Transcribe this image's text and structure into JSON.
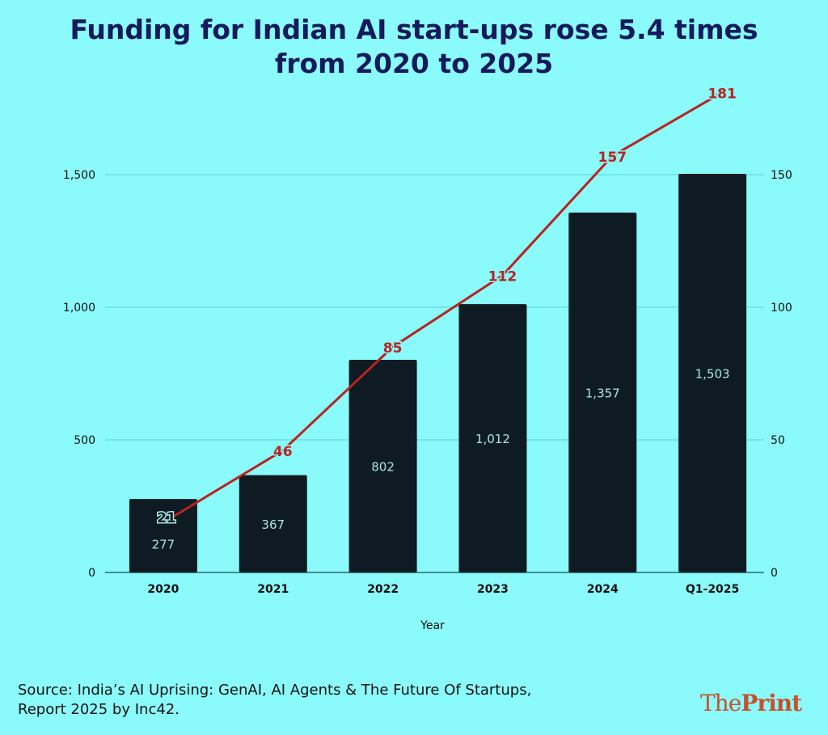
{
  "chart_data": {
    "type": "bar+line",
    "title": "Funding for Indian AI start-ups rose 5.4 times from 2020 to 2025",
    "title_lines": [
      "Funding for Indian AI start-ups rose 5.4 times",
      "from 2020 to 2025"
    ],
    "xlabel": "Year",
    "categories": [
      "2020",
      "2021",
      "2022",
      "2023",
      "2024",
      "Q1-2025"
    ],
    "series": [
      {
        "type": "bar",
        "axis": "left",
        "values": [
          277,
          367,
          802,
          1012,
          1357,
          1503
        ],
        "labels": [
          "277",
          "367",
          "802",
          "1,012",
          "1,357",
          "1,503"
        ],
        "color": "#0f1b22"
      },
      {
        "type": "line",
        "axis": "right",
        "values": [
          21,
          46,
          85,
          112,
          157,
          181
        ],
        "labels": [
          "21",
          "46",
          "85",
          "112",
          "157",
          "181"
        ],
        "color": "#b8231f"
      }
    ],
    "left_axis": {
      "ylim": [
        0,
        1500
      ],
      "ticks": [
        0,
        500,
        1000,
        1500
      ],
      "tick_labels": [
        "0",
        "500",
        "1,000",
        "1,500"
      ]
    },
    "right_axis": {
      "ylim": [
        0,
        150
      ],
      "ticks": [
        0,
        50,
        100,
        150
      ],
      "tick_labels": [
        "0",
        "50",
        "100",
        "150"
      ]
    },
    "grid": true
  },
  "source": {
    "line1": "Source: India’s AI Uprising: GenAI, AI Agents & The Future Of Startups,",
    "line2": "Report 2025 by Inc42."
  },
  "logo": {
    "part1": "The",
    "part2": "Print"
  },
  "colors": {
    "background": "#8afafa",
    "title": "#141a5c",
    "bar": "#0f1b22",
    "line": "#b8231f",
    "grid": "#5fd0d0"
  }
}
